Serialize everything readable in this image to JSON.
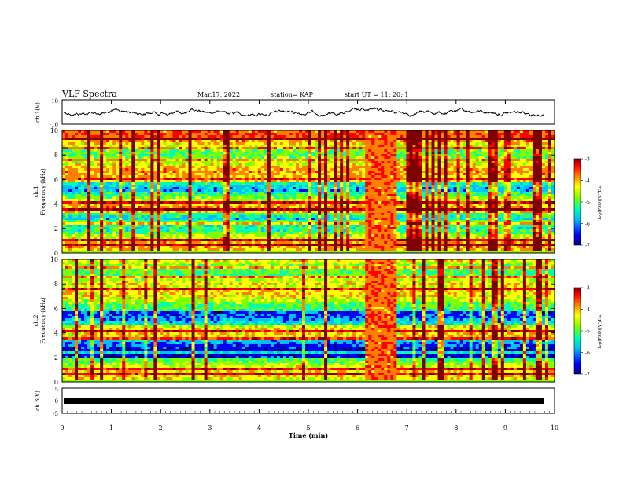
{
  "header": {
    "title": "VLF Spectra",
    "date": "Mar.17, 2022",
    "station": "station= KAP",
    "start": "start  UT =   11: 20: 1"
  },
  "chart_data": [
    {
      "type": "line",
      "panel": "top",
      "ylabel": "ch.1(V)",
      "ylim": [
        -10,
        10
      ],
      "yticks": [
        "10",
        "-10"
      ],
      "xlim": [
        0,
        10
      ],
      "series": [
        {
          "values_description_omitted": true
        }
      ],
      "trace_color": "#000000"
    },
    {
      "type": "heatmap",
      "panel": "ch1",
      "ylabel": "ch.1\nFrequency (kHz)",
      "ylim": [
        0,
        10
      ],
      "yticks": [
        "0",
        "2",
        "4",
        "6",
        "8",
        "10"
      ],
      "xlim": [
        0,
        10
      ],
      "burst_window_min": [
        6.1,
        6.75
      ],
      "colorbar": {
        "label": "log(PSD)(V²/Hz)",
        "range": [
          -7,
          -3
        ],
        "ticks": [
          "-3",
          "-4",
          "-5",
          "-6",
          "-7"
        ]
      }
    },
    {
      "type": "heatmap",
      "panel": "ch2",
      "ylabel": "ch.2\nFrequency (kHz)",
      "ylim": [
        0,
        10
      ],
      "yticks": [
        "0",
        "2",
        "4",
        "6",
        "8",
        "10"
      ],
      "xlim": [
        0,
        10
      ],
      "burst_window_min": [
        6.1,
        6.75
      ],
      "colorbar": {
        "label": "log(PSD)(V²/Hz)",
        "range": [
          -7,
          -3
        ],
        "ticks": [
          "-3",
          "-4",
          "-5",
          "-6",
          "-7"
        ]
      }
    },
    {
      "type": "line",
      "panel": "bottom",
      "ylabel": "ch.3(V)",
      "ylim": [
        -5,
        5
      ],
      "yticks": [
        "5",
        "0",
        "-5"
      ],
      "xlim": [
        0,
        10
      ],
      "xlabel": "Time (min)",
      "xticks": [
        "0",
        "1",
        "2",
        "3",
        "4",
        "5",
        "6",
        "7",
        "8",
        "9",
        "10"
      ],
      "series": [
        {
          "band_level": -1.2
        }
      ]
    }
  ],
  "ylabels": {
    "ch1v": "ch.1(V)",
    "ch1a": "ch.1",
    "ch1b": "Frequency (kHz)",
    "ch2a": "ch.2",
    "ch2b": "Frequency (kHz)",
    "ch3v": "ch.3(V)",
    "cbar": "log(PSD)(V²/Hz)"
  },
  "xlabel": "Time (min)",
  "ticks": {
    "top": [
      "10",
      "-10"
    ],
    "freq": [
      "0",
      "2",
      "4",
      "6",
      "8",
      "10"
    ],
    "bottom": [
      "5",
      "0",
      "-5"
    ],
    "time": [
      "0",
      "1",
      "2",
      "3",
      "4",
      "5",
      "6",
      "7",
      "8",
      "9",
      "10"
    ],
    "cbar": [
      "-3",
      "-4",
      "-5",
      "-6",
      "-7"
    ]
  },
  "colors": {
    "cmap": [
      "#00007f",
      "#0000ff",
      "#00bfff",
      "#00ffb0",
      "#7fff00",
      "#ffff00",
      "#ff7f00",
      "#ff0000",
      "#7f0000"
    ]
  }
}
